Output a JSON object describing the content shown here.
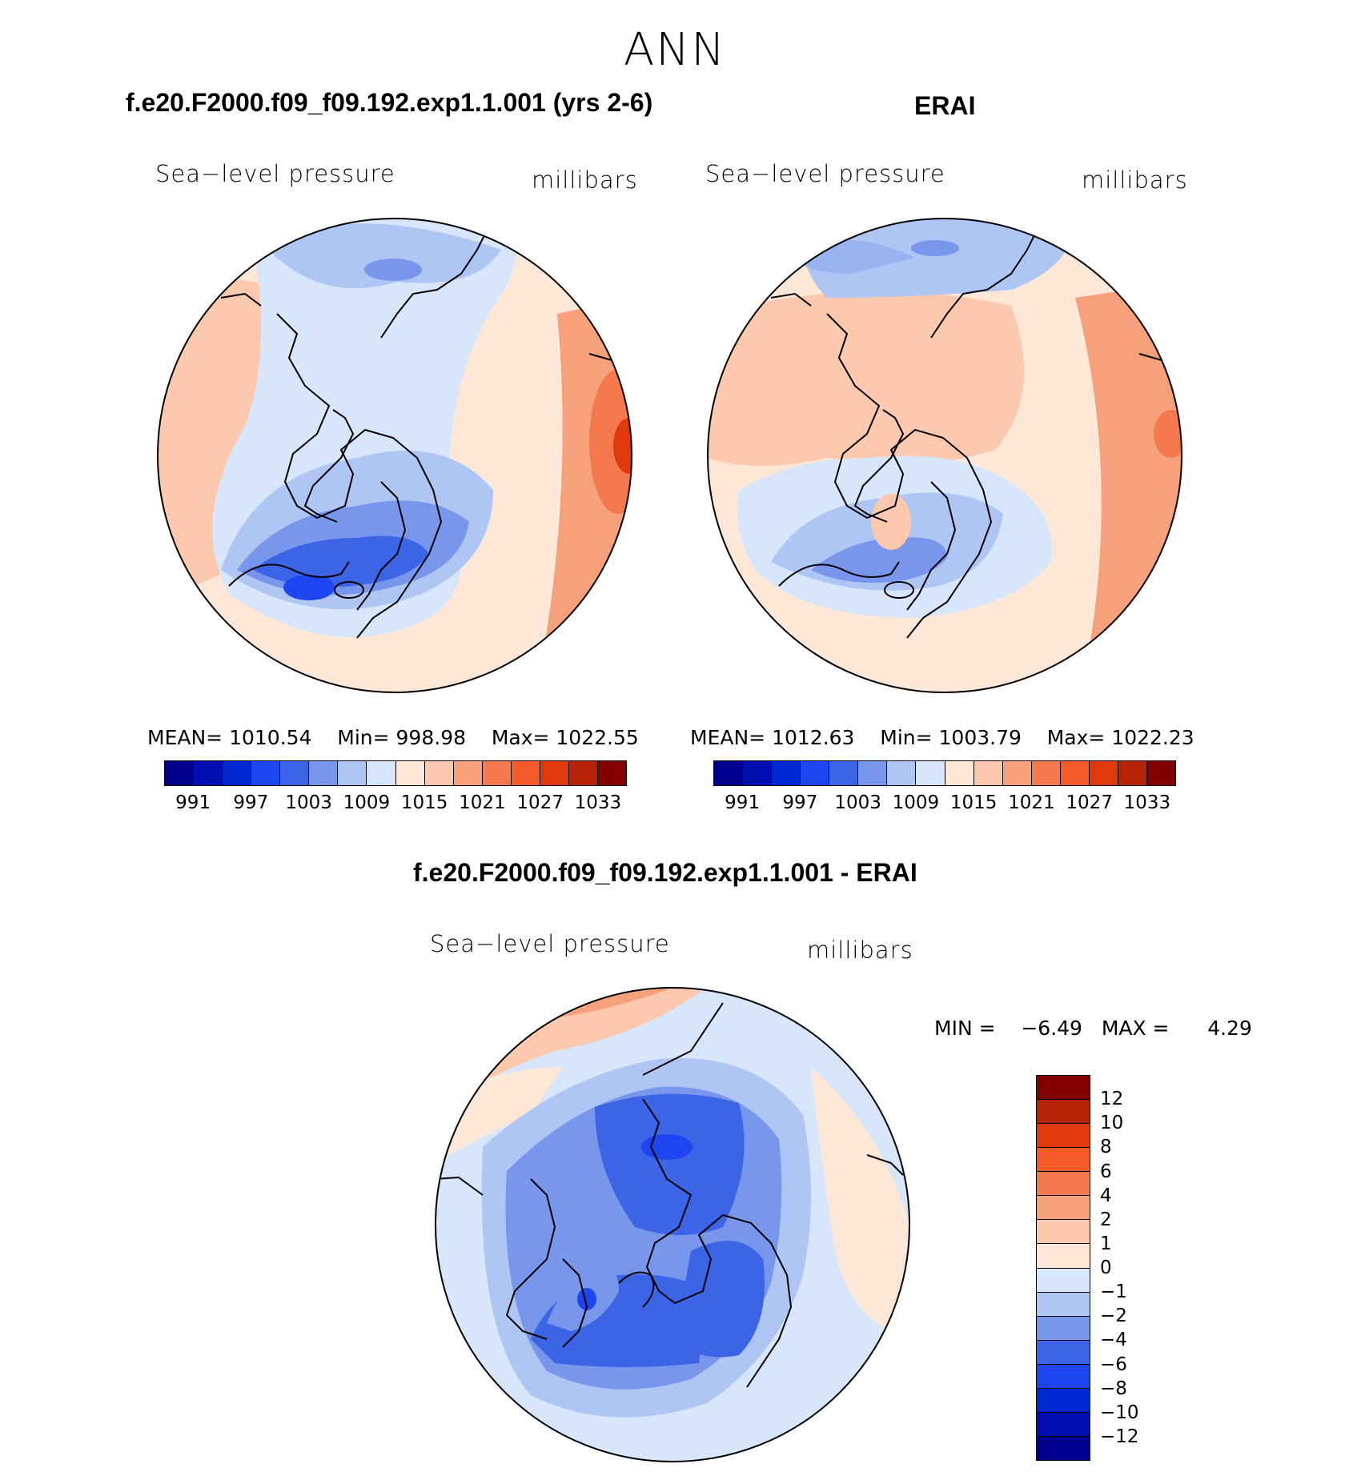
{
  "season": "ANN",
  "panels": [
    {
      "title": "f.e20.F2000.f09_f09.192.exp1.1.001 (yrs 2-6)",
      "variable": "Sea−level pressure",
      "units": "millibars",
      "stats": {
        "mean_label": "MEAN=",
        "mean": "1010.54",
        "min_label": "Min=",
        "min": "998.98",
        "max_label": "Max=",
        "max": "1022.55"
      }
    },
    {
      "title": "ERAI",
      "variable": "Sea−level pressure",
      "units": "millibars",
      "stats": {
        "mean_label": "MEAN=",
        "mean": "1012.63",
        "min_label": "Min=",
        "min": "1003.79",
        "max_label": "Max=",
        "max": "1022.23"
      }
    },
    {
      "title": "f.e20.F2000.f09_f09.192.exp1.1.001 - ERAI",
      "variable": "Sea−level pressure",
      "units": "millibars",
      "stats": {
        "min_label": "MIN =",
        "min": "−6.49",
        "max_label": "MAX =",
        "max": "4.29"
      }
    }
  ],
  "colorbar_abs": {
    "colors": [
      "#00008c",
      "#0010b0",
      "#0028d0",
      "#1e46f0",
      "#3c64e6",
      "#7896eb",
      "#afc6f5",
      "#d7e6fa",
      "#fde8d8",
      "#fcc8ae",
      "#f7a17c",
      "#f47a4e",
      "#f55a28",
      "#e03a0c",
      "#b42306",
      "#820000"
    ],
    "labels": [
      "991",
      "997",
      "1003",
      "1009",
      "1015",
      "1021",
      "1027",
      "1033"
    ]
  },
  "colorbar_diff": {
    "colors": [
      "#820000",
      "#b42306",
      "#e03a0c",
      "#f55a28",
      "#f47a4e",
      "#f7a17c",
      "#fcc8ae",
      "#fde8d8",
      "#d7e6fa",
      "#afc6f5",
      "#7896eb",
      "#3c64e6",
      "#1e46f0",
      "#0028d0",
      "#0010b0",
      "#00008c"
    ],
    "labels": [
      "12",
      "10",
      "8",
      "6",
      "4",
      "2",
      "1",
      "0",
      "−1",
      "−2",
      "−4",
      "−6",
      "−8",
      "−10",
      "−12"
    ]
  }
}
